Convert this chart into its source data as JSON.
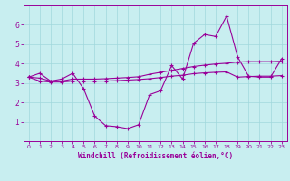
{
  "xlabel": "Windchill (Refroidissement éolien,°C)",
  "background_color": "#c8eef0",
  "line_color": "#990099",
  "grid_color": "#a0d8dc",
  "xlim": [
    -0.5,
    23.5
  ],
  "ylim": [
    0,
    7
  ],
  "yticks": [
    1,
    2,
    3,
    4,
    5,
    6
  ],
  "xticks": [
    0,
    1,
    2,
    3,
    4,
    5,
    6,
    7,
    8,
    9,
    10,
    11,
    12,
    13,
    14,
    15,
    16,
    17,
    18,
    19,
    20,
    21,
    22,
    23
  ],
  "line1_x": [
    0,
    1,
    2,
    3,
    4,
    5,
    6,
    7,
    8,
    9,
    10,
    11,
    12,
    13,
    14,
    15,
    16,
    17,
    18,
    19,
    20,
    21,
    22,
    23
  ],
  "line1_y": [
    3.3,
    3.5,
    3.1,
    3.2,
    3.5,
    2.7,
    1.3,
    0.8,
    0.75,
    0.65,
    0.85,
    2.4,
    2.6,
    3.9,
    3.2,
    5.05,
    5.5,
    5.4,
    6.45,
    4.35,
    3.35,
    3.3,
    3.3,
    4.25
  ],
  "line2_x": [
    0,
    1,
    2,
    3,
    4,
    5,
    6,
    7,
    8,
    9,
    10,
    11,
    12,
    13,
    14,
    15,
    16,
    17,
    18,
    19,
    20,
    21,
    22,
    23
  ],
  "line2_y": [
    3.3,
    3.25,
    3.1,
    3.1,
    3.2,
    3.2,
    3.2,
    3.22,
    3.25,
    3.28,
    3.32,
    3.45,
    3.55,
    3.65,
    3.75,
    3.85,
    3.92,
    3.98,
    4.02,
    4.08,
    4.1,
    4.1,
    4.1,
    4.12
  ],
  "line3_x": [
    0,
    1,
    2,
    3,
    4,
    5,
    6,
    7,
    8,
    9,
    10,
    11,
    12,
    13,
    14,
    15,
    16,
    17,
    18,
    19,
    20,
    21,
    22,
    23
  ],
  "line3_y": [
    3.3,
    3.1,
    3.05,
    3.05,
    3.1,
    3.1,
    3.1,
    3.1,
    3.12,
    3.15,
    3.18,
    3.22,
    3.28,
    3.35,
    3.4,
    3.48,
    3.52,
    3.55,
    3.57,
    3.3,
    3.33,
    3.35,
    3.35,
    3.38
  ]
}
